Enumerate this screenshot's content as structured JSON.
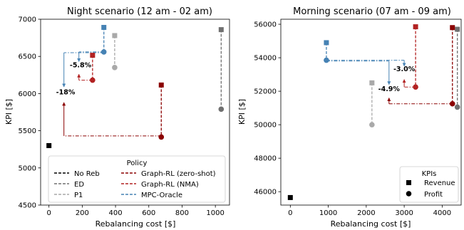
{
  "chart_data": [
    {
      "type": "scatter",
      "title": "Night scenario (12 am - 02 am)",
      "xlabel": "Rebalancing cost [$]",
      "ylabel": "KPI [$]",
      "xlim": [
        -50,
        1085
      ],
      "ylim": [
        4500,
        7000
      ],
      "xticks": [
        0,
        200,
        400,
        600,
        800,
        1000
      ],
      "yticks": [
        4500,
        5000,
        5500,
        6000,
        6500,
        7000
      ],
      "grid": false,
      "series": [
        {
          "name": "No Reb",
          "color": "#000000",
          "revenue": [
            0,
            5300
          ],
          "profit": null
        },
        {
          "name": "ED",
          "color": "#707070",
          "revenue": [
            1035,
            6860
          ],
          "profit": [
            1035,
            5790
          ]
        },
        {
          "name": "P1",
          "color": "#a9a9a9",
          "revenue": [
            395,
            6780
          ],
          "profit": [
            395,
            6350
          ]
        },
        {
          "name": "Graph-RL (zero-shot)",
          "color": "#8b0000",
          "revenue": [
            675,
            6115
          ],
          "profit": [
            675,
            5415
          ]
        },
        {
          "name": "Graph-RL (NMA)",
          "color": "#b22222",
          "revenue": [
            262,
            6515
          ],
          "profit": [
            262,
            6180
          ]
        },
        {
          "name": "MPC-Oracle",
          "color": "#4682b4",
          "revenue": [
            330,
            6890
          ],
          "profit": [
            330,
            6560
          ]
        }
      ],
      "annotations": [
        {
          "text": "-5.8%",
          "x": 190,
          "y": 6355
        },
        {
          "text": "-18%",
          "x": 100,
          "y": 5990
        }
      ],
      "arrows": [
        {
          "color": "#b22222",
          "segments": [
            [
              [
                262,
                6180
              ],
              [
                180,
                6180
              ]
            ]
          ],
          "arrow_to": [
            180,
            6260
          ]
        },
        {
          "color": "#4682b4",
          "segments": [
            [
              [
                330,
                6560
              ],
              [
                180,
                6560
              ]
            ]
          ],
          "arrow_to": [
            180,
            6430
          ]
        },
        {
          "color": "#8b0000",
          "segments": [
            [
              [
                675,
                5430
              ],
              [
                90,
                5430
              ]
            ]
          ],
          "arrow_to": [
            90,
            5880
          ]
        },
        {
          "color": "#4682b4",
          "segments": [
            [
              [
                330,
                6550
              ],
              [
                90,
                6550
              ]
            ]
          ],
          "arrow_to": [
            90,
            6090
          ]
        }
      ],
      "legend": {
        "title": "Policy",
        "placement": "lower-center",
        "entries": [
          "No Reb",
          "ED",
          "P1",
          "Graph-RL (zero-shot)",
          "Graph-RL (NMA)",
          "MPC-Oracle"
        ]
      }
    },
    {
      "type": "scatter",
      "title": "Morning scenario (07 am - 09 am)",
      "xlabel": "Rebalancing cost [$]",
      "ylabel": "KPI [$]",
      "xlim": [
        -250,
        4500
      ],
      "ylim": [
        45200,
        56300
      ],
      "xticks": [
        0,
        1000,
        2000,
        3000,
        4000
      ],
      "yticks": [
        46000,
        48000,
        50000,
        52000,
        54000,
        56000
      ],
      "grid": false,
      "series": [
        {
          "name": "No Reb",
          "color": "#000000",
          "revenue": [
            0,
            45650
          ],
          "profit": null
        },
        {
          "name": "ED",
          "color": "#707070",
          "revenue": [
            4400,
            55700
          ],
          "profit": [
            4400,
            51050
          ]
        },
        {
          "name": "P1",
          "color": "#a9a9a9",
          "revenue": [
            2150,
            52500
          ],
          "profit": [
            2150,
            50000
          ]
        },
        {
          "name": "Graph-RL (zero-shot)",
          "color": "#8b0000",
          "revenue": [
            4270,
            55800
          ],
          "profit": [
            4270,
            51250
          ]
        },
        {
          "name": "Graph-RL (NMA)",
          "color": "#b22222",
          "revenue": [
            3300,
            55850
          ],
          "profit": [
            3300,
            52250
          ]
        },
        {
          "name": "MPC-Oracle",
          "color": "#4682b4",
          "revenue": [
            950,
            54900
          ],
          "profit": [
            950,
            53850
          ]
        }
      ],
      "annotations": [
        {
          "text": "-3.0%",
          "x": 3000,
          "y": 53200
        },
        {
          "text": "-4.9%",
          "x": 2600,
          "y": 52000
        }
      ],
      "arrows": [
        {
          "color": "#b22222",
          "segments": [
            [
              [
                3300,
                52250
              ],
              [
                3000,
                52250
              ]
            ]
          ],
          "arrow_to": [
            3000,
            52700
          ]
        },
        {
          "color": "#4682b4",
          "segments": [
            [
              [
                950,
                53850
              ],
              [
                3000,
                53850
              ]
            ]
          ],
          "arrow_to": [
            3000,
            53500
          ]
        },
        {
          "color": "#8b0000",
          "segments": [
            [
              [
                4270,
                51250
              ],
              [
                2600,
                51250
              ]
            ]
          ],
          "arrow_to": [
            2600,
            51600
          ]
        },
        {
          "color": "#4682b4",
          "segments": [
            [
              [
                950,
                53800
              ],
              [
                2600,
                53800
              ]
            ]
          ],
          "arrow_to": [
            2600,
            52400
          ]
        }
      ],
      "legend": {
        "title": "KPIs",
        "placement": "lower-right",
        "entries": [
          "Revenue",
          "Profit"
        ]
      }
    }
  ]
}
